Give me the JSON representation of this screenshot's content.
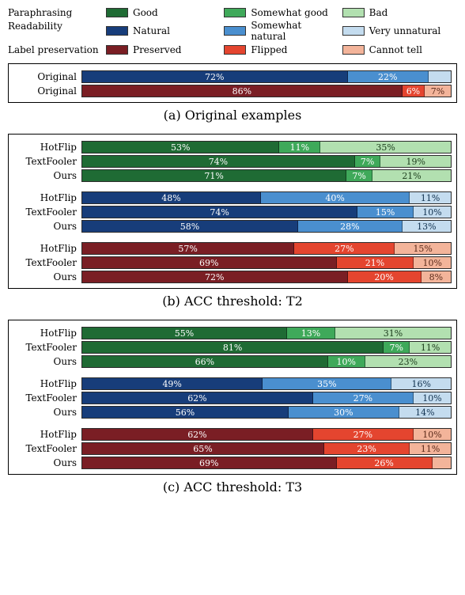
{
  "colors": {
    "green_dark": "#1f6b34",
    "green_mid": "#3fa95a",
    "green_light": "#b2e0b0",
    "blue_dark": "#173d7a",
    "blue_mid": "#4a8fcf",
    "blue_light": "#c4dcef",
    "red_dark": "#7a1e24",
    "red_mid": "#e4452f",
    "red_light": "#f3b49a",
    "border": "#000000",
    "text_white": "#ffffff"
  },
  "legend": {
    "rows": [
      {
        "label": "Paraphrasing",
        "items": [
          "Good",
          "Somewhat good",
          "Bad"
        ],
        "palette": "green"
      },
      {
        "label": "Readability",
        "items": [
          "Natural",
          "Somewhat natural",
          "Very unnatural"
        ],
        "palette": "blue"
      },
      {
        "label": "Label preservation",
        "items": [
          "Preserved",
          "Flipped",
          "Cannot tell"
        ],
        "palette": "red"
      }
    ]
  },
  "panels": [
    {
      "id": "orig",
      "caption": "(a) Original examples",
      "groups": [
        {
          "rows": [
            {
              "label": "Original",
              "palette": "blue",
              "segments": [
                {
                  "v": 72,
                  "t": "72%"
                },
                {
                  "v": 22,
                  "t": "22%"
                },
                {
                  "v": 6,
                  "t": ""
                }
              ]
            },
            {
              "label": "Original",
              "palette": "red",
              "segments": [
                {
                  "v": 86,
                  "t": "86%"
                },
                {
                  "v": 6,
                  "t": "6%"
                },
                {
                  "v": 7,
                  "t": "7%"
                }
              ]
            }
          ]
        }
      ]
    },
    {
      "id": "t2",
      "caption": "(b) ACC threshold: T2",
      "groups": [
        {
          "rows": [
            {
              "label": "HotFlip",
              "palette": "green",
              "segments": [
                {
                  "v": 53,
                  "t": "53%"
                },
                {
                  "v": 11,
                  "t": "11%"
                },
                {
                  "v": 35,
                  "t": "35%"
                }
              ]
            },
            {
              "label": "TextFooler",
              "palette": "green",
              "segments": [
                {
                  "v": 74,
                  "t": "74%"
                },
                {
                  "v": 7,
                  "t": "7%"
                },
                {
                  "v": 19,
                  "t": "19%"
                }
              ]
            },
            {
              "label": "Ours",
              "palette": "green",
              "segments": [
                {
                  "v": 71,
                  "t": "71%"
                },
                {
                  "v": 7,
                  "t": "7%"
                },
                {
                  "v": 21,
                  "t": "21%"
                }
              ]
            }
          ]
        },
        {
          "rows": [
            {
              "label": "HotFlip",
              "palette": "blue",
              "segments": [
                {
                  "v": 48,
                  "t": "48%"
                },
                {
                  "v": 40,
                  "t": "40%"
                },
                {
                  "v": 11,
                  "t": "11%"
                }
              ]
            },
            {
              "label": "TextFooler",
              "palette": "blue",
              "segments": [
                {
                  "v": 74,
                  "t": "74%"
                },
                {
                  "v": 15,
                  "t": "15%"
                },
                {
                  "v": 10,
                  "t": "10%"
                }
              ]
            },
            {
              "label": "Ours",
              "palette": "blue",
              "segments": [
                {
                  "v": 58,
                  "t": "58%"
                },
                {
                  "v": 28,
                  "t": "28%"
                },
                {
                  "v": 13,
                  "t": "13%"
                }
              ]
            }
          ]
        },
        {
          "rows": [
            {
              "label": "HotFlip",
              "palette": "red",
              "segments": [
                {
                  "v": 57,
                  "t": "57%"
                },
                {
                  "v": 27,
                  "t": "27%"
                },
                {
                  "v": 15,
                  "t": "15%"
                }
              ]
            },
            {
              "label": "TextFooler",
              "palette": "red",
              "segments": [
                {
                  "v": 69,
                  "t": "69%"
                },
                {
                  "v": 21,
                  "t": "21%"
                },
                {
                  "v": 10,
                  "t": "10%"
                }
              ]
            },
            {
              "label": "Ours",
              "palette": "red",
              "segments": [
                {
                  "v": 72,
                  "t": "72%"
                },
                {
                  "v": 20,
                  "t": "20%"
                },
                {
                  "v": 8,
                  "t": "8%"
                }
              ]
            }
          ]
        }
      ]
    },
    {
      "id": "t3",
      "caption": "(c) ACC threshold: T3",
      "groups": [
        {
          "rows": [
            {
              "label": "HotFlip",
              "palette": "green",
              "segments": [
                {
                  "v": 55,
                  "t": "55%"
                },
                {
                  "v": 13,
                  "t": "13%"
                },
                {
                  "v": 31,
                  "t": "31%"
                }
              ]
            },
            {
              "label": "TextFooler",
              "palette": "green",
              "segments": [
                {
                  "v": 81,
                  "t": "81%"
                },
                {
                  "v": 7,
                  "t": "7%"
                },
                {
                  "v": 11,
                  "t": "11%"
                }
              ]
            },
            {
              "label": "Ours",
              "palette": "green",
              "segments": [
                {
                  "v": 66,
                  "t": "66%"
                },
                {
                  "v": 10,
                  "t": "10%"
                },
                {
                  "v": 23,
                  "t": "23%"
                }
              ]
            }
          ]
        },
        {
          "rows": [
            {
              "label": "HotFlip",
              "palette": "blue",
              "segments": [
                {
                  "v": 49,
                  "t": "49%"
                },
                {
                  "v": 35,
                  "t": "35%"
                },
                {
                  "v": 16,
                  "t": "16%"
                }
              ]
            },
            {
              "label": "TextFooler",
              "palette": "blue",
              "segments": [
                {
                  "v": 62,
                  "t": "62%"
                },
                {
                  "v": 27,
                  "t": "27%"
                },
                {
                  "v": 10,
                  "t": "10%"
                }
              ]
            },
            {
              "label": "Ours",
              "palette": "blue",
              "segments": [
                {
                  "v": 56,
                  "t": "56%"
                },
                {
                  "v": 30,
                  "t": "30%"
                },
                {
                  "v": 14,
                  "t": "14%"
                }
              ]
            }
          ]
        },
        {
          "rows": [
            {
              "label": "HotFlip",
              "palette": "red",
              "segments": [
                {
                  "v": 62,
                  "t": "62%"
                },
                {
                  "v": 27,
                  "t": "27%"
                },
                {
                  "v": 10,
                  "t": "10%"
                }
              ]
            },
            {
              "label": "TextFooler",
              "palette": "red",
              "segments": [
                {
                  "v": 65,
                  "t": "65%"
                },
                {
                  "v": 23,
                  "t": "23%"
                },
                {
                  "v": 11,
                  "t": "11%"
                }
              ]
            },
            {
              "label": "Ours",
              "palette": "red",
              "segments": [
                {
                  "v": 69,
                  "t": "69%"
                },
                {
                  "v": 26,
                  "t": "26%"
                },
                {
                  "v": 5,
                  "t": ""
                }
              ]
            }
          ]
        }
      ]
    }
  ]
}
